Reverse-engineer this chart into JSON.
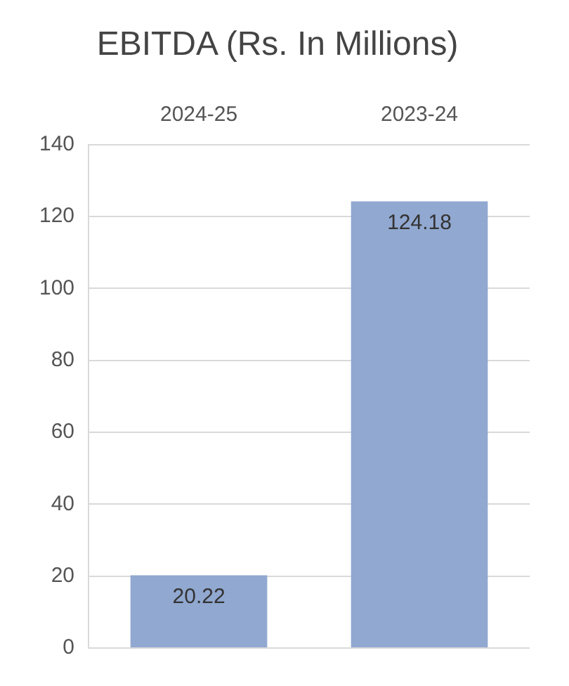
{
  "chart_data": {
    "type": "bar",
    "title": "EBITDA (Rs. In Millions)",
    "categories": [
      "2024-25",
      "2023-24"
    ],
    "values": [
      20.22,
      124.18
    ],
    "color": "#91a8d0",
    "ylim": [
      0,
      140
    ],
    "yticks": [
      0,
      20,
      40,
      60,
      80,
      100,
      120,
      140
    ],
    "grid": "y",
    "data_labels": true
  }
}
